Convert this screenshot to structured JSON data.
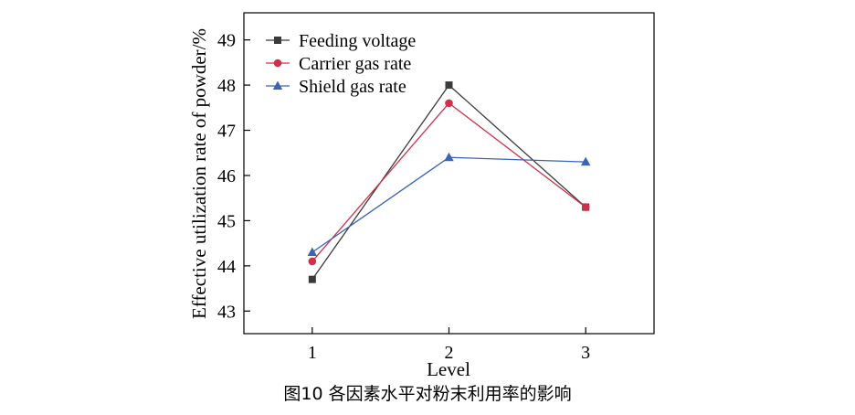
{
  "caption": "图10 各因素水平对粉末利用率的影响",
  "chart_data": {
    "type": "line",
    "xlabel": "Level",
    "ylabel": "Effective utilization rate of powder/%",
    "x": [
      1,
      2,
      3
    ],
    "xlim": [
      0.5,
      3.5
    ],
    "ylim": [
      42.5,
      49.6
    ],
    "yticks": [
      43,
      44,
      45,
      46,
      47,
      48,
      49
    ],
    "xticks": [
      1,
      2,
      3
    ],
    "grid": false,
    "legend_position": "top-left",
    "series": [
      {
        "name": "Feeding voltage",
        "values": [
          43.7,
          48.0,
          45.3
        ],
        "color": "#3a3a3a",
        "marker": "square"
      },
      {
        "name": "Carrier gas rate",
        "values": [
          44.1,
          47.6,
          45.3
        ],
        "color": "#d0304a",
        "marker": "circle"
      },
      {
        "name": "Shield gas rate",
        "values": [
          44.3,
          46.4,
          46.3
        ],
        "color": "#3a64b4",
        "marker": "triangle"
      }
    ]
  }
}
